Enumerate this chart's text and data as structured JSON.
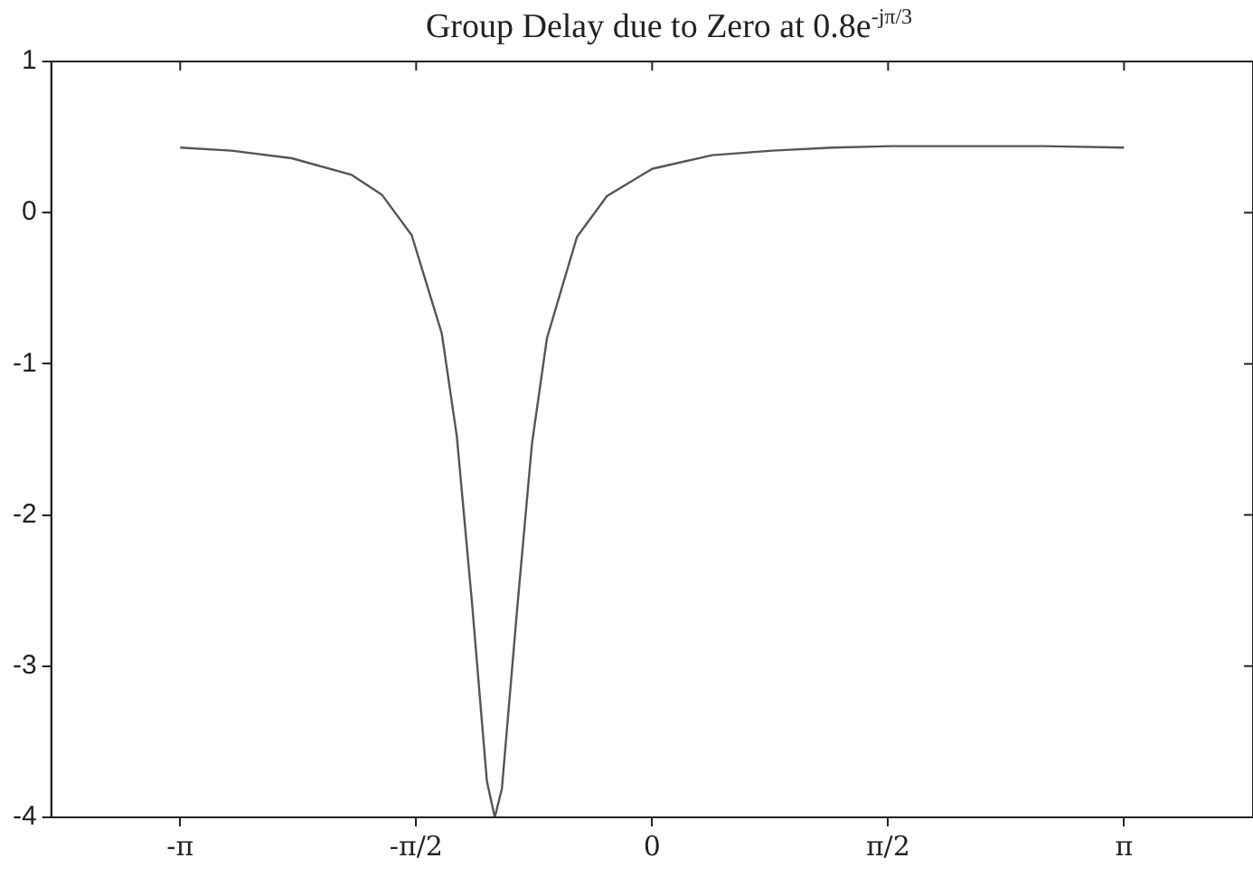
{
  "chart_data": {
    "type": "line",
    "title": "Group Delay due to Zero at 0.8e$^{-jπ/3}$",
    "x": [
      -3.1416,
      -2.8,
      -2.4,
      -2.0,
      -1.8,
      -1.6,
      -1.4,
      -1.3,
      -1.2,
      -1.1,
      -1.0472,
      -1.0,
      -0.9,
      -0.8,
      -0.7,
      -0.5,
      -0.3,
      0,
      0.4,
      0.8,
      1.2,
      1.6,
      2.0944,
      2.6,
      3.1416
    ],
    "series": [
      {
        "color": "#555555",
        "values": [
          0.43,
          0.41,
          0.36,
          0.25,
          0.12,
          -0.15,
          -0.8,
          -1.48,
          -2.57,
          -3.76,
          -4,
          -3.81,
          -2.64,
          -1.53,
          -0.83,
          -0.16,
          0.11,
          0.29,
          0.38,
          0.41,
          0.43,
          0.44,
          0.44,
          0.44,
          0.43
        ]
      }
    ],
    "xlim": [
      -4,
      4
    ],
    "xticks": [
      {
        "value": -3.1416,
        "label": "-π"
      },
      {
        "value": -1.5708,
        "label": "-π/2"
      },
      0,
      {
        "value": 1.5708,
        "label": "π/2"
      },
      {
        "value": 3.1416,
        "label": "π"
      }
    ],
    "ylim": [
      -4,
      1
    ],
    "yticks": [
      -4,
      -3,
      -2,
      -1,
      0,
      1
    ],
    "grid": false,
    "legend": false,
    "marker": "none",
    "line_style": "solid"
  }
}
